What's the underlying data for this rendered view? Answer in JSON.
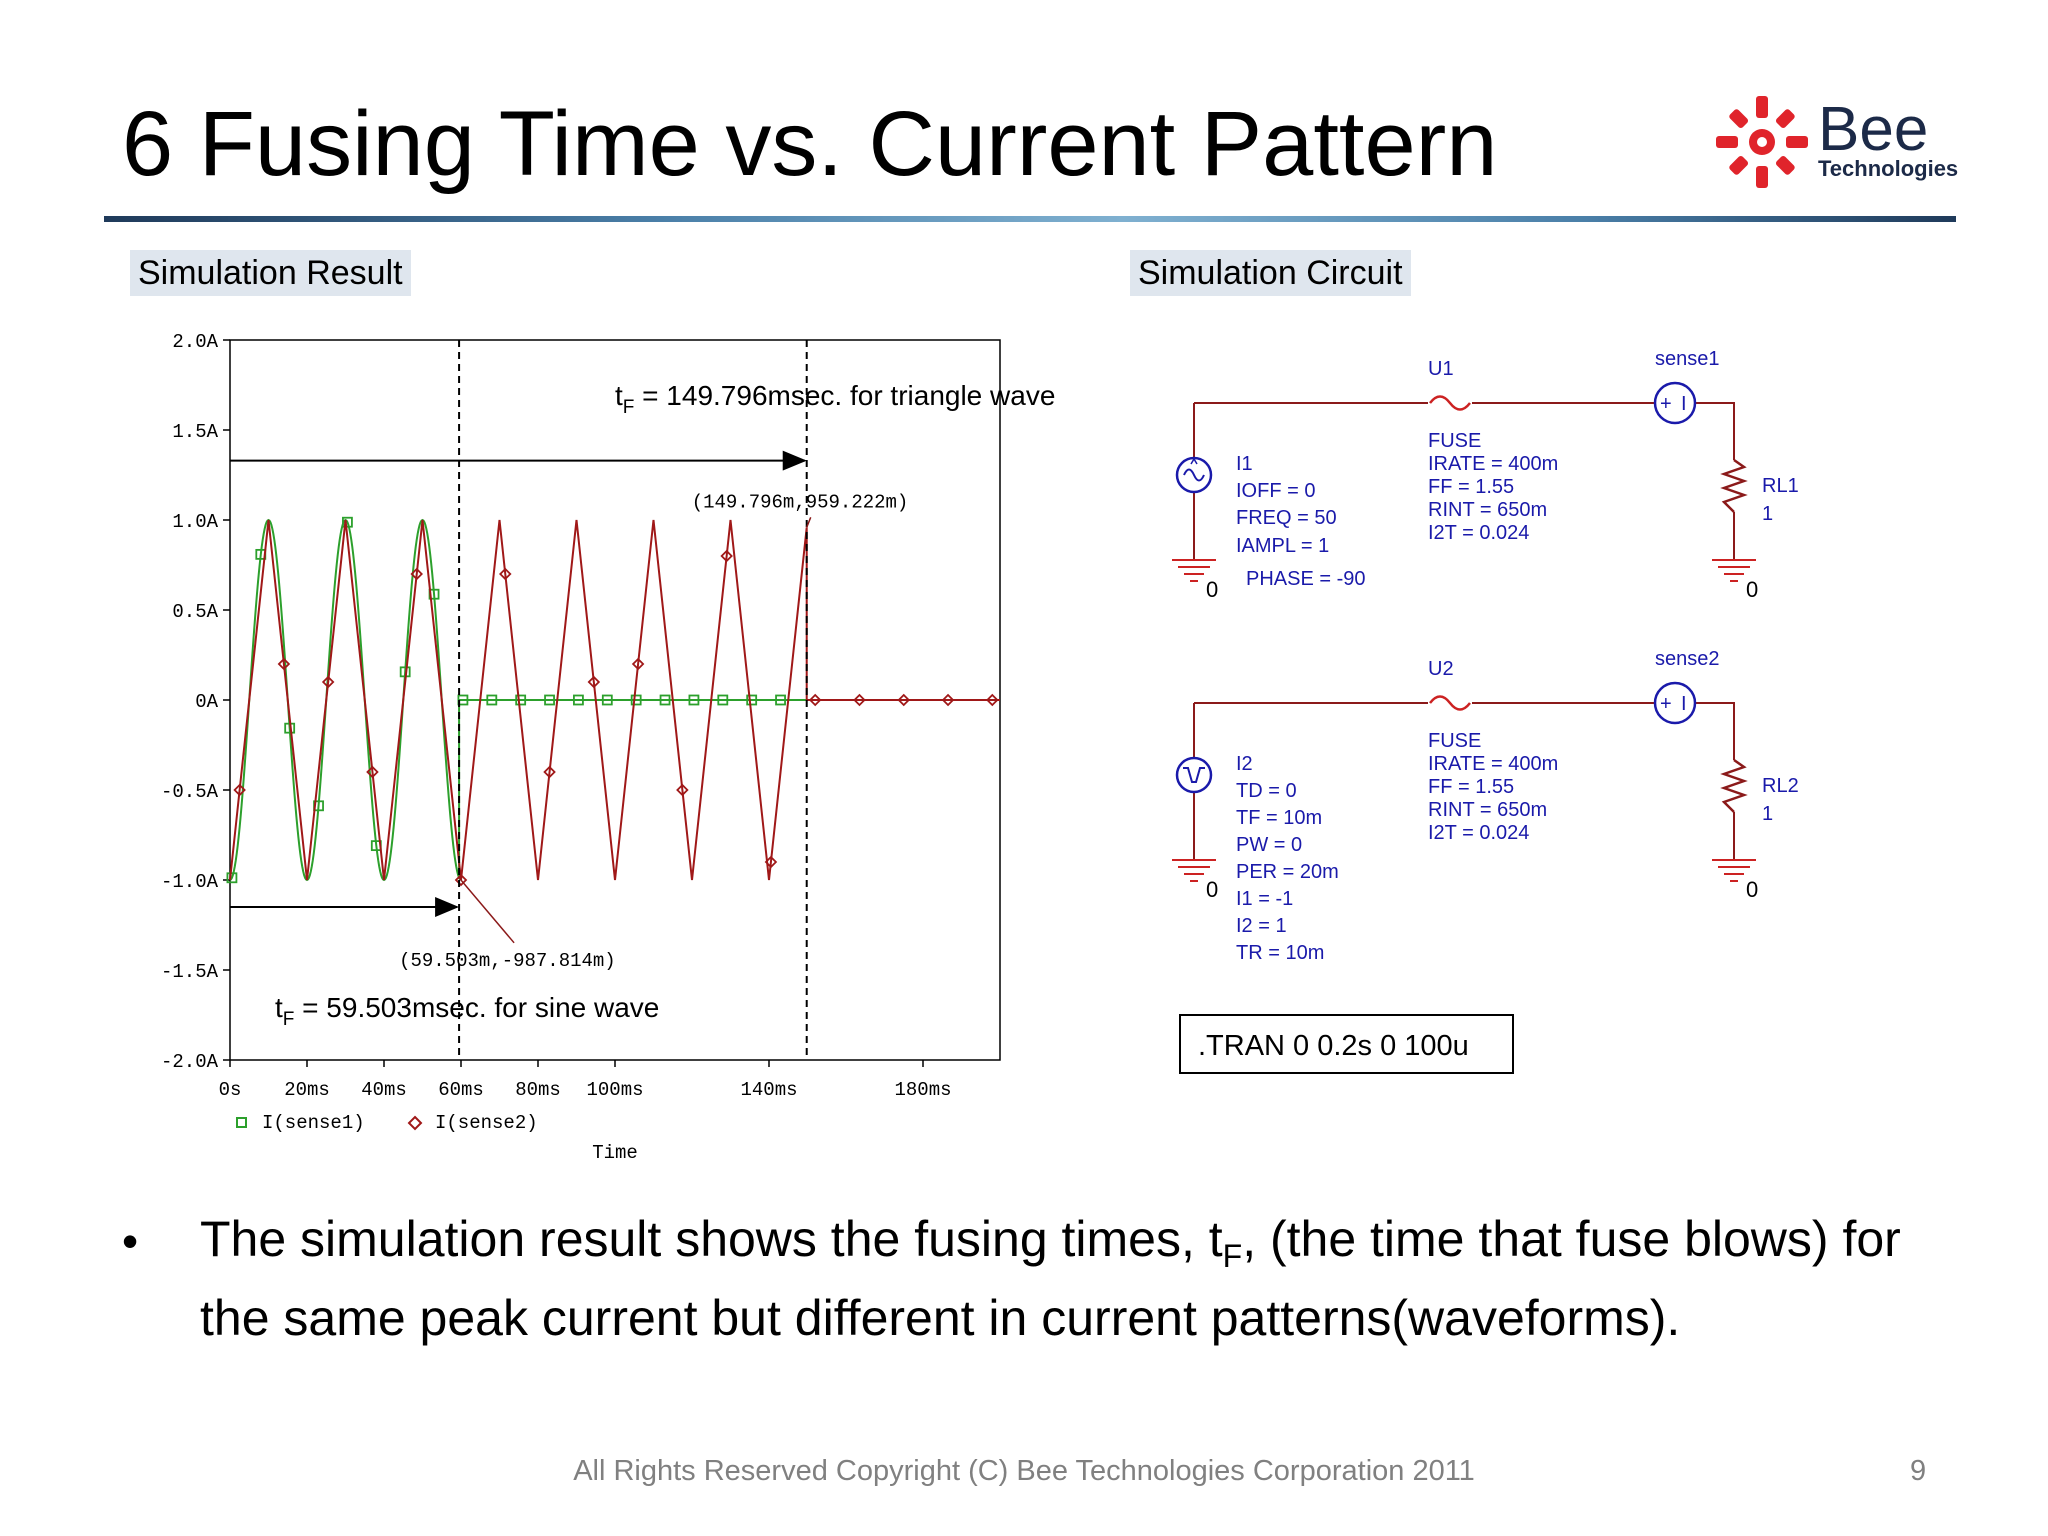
{
  "slide": {
    "title": "6 Fusing Time vs. Current Pattern",
    "logo": {
      "word": "Bee",
      "sub": "Technologies",
      "colors": {
        "star": "#e0242b",
        "word": "#1c2a48"
      }
    },
    "sections": {
      "result_label": "Simulation Result",
      "circuit_label": "Simulation Circuit"
    },
    "bullet": {
      "part1": "The simulation result shows the fusing times, t",
      "sub": "F",
      "part2": ", (the time that fuse blows) for the same peak current but different in current patterns(waveforms)."
    },
    "footer": "All Rights Reserved Copyright (C) Bee Technologies Corporation 2011",
    "page_number": "9"
  },
  "chart_data": {
    "type": "line",
    "xlabel": "Time",
    "x_unit": "ms",
    "xlim": [
      0,
      200
    ],
    "ylim": [
      -2.0,
      2.0
    ],
    "x_ticks": [
      {
        "value": 0,
        "label": "0s"
      },
      {
        "value": 20,
        "label": "20ms"
      },
      {
        "value": 40,
        "label": "40ms"
      },
      {
        "value": 60,
        "label": "60ms"
      },
      {
        "value": 80,
        "label": "80ms"
      },
      {
        "value": 100,
        "label": "100ms"
      },
      {
        "value": 140,
        "label": "140ms"
      },
      {
        "value": 180,
        "label": "180ms"
      }
    ],
    "y_ticks": [
      {
        "value": 2.0,
        "label": "2.0A"
      },
      {
        "value": 1.5,
        "label": "1.5A"
      },
      {
        "value": 1.0,
        "label": "1.0A"
      },
      {
        "value": 0.5,
        "label": "0.5A"
      },
      {
        "value": 0.0,
        "label": "0A"
      },
      {
        "value": -0.5,
        "label": "-0.5A"
      },
      {
        "value": -1.0,
        "label": "-1.0A"
      },
      {
        "value": -1.5,
        "label": "-1.5A"
      },
      {
        "value": -2.0,
        "label": "-2.0A"
      }
    ],
    "series": [
      {
        "name": "I(sense1)",
        "shape": "sine",
        "amplitude": 1.0,
        "frequency_hz": 50,
        "phase_deg": -90,
        "cutoff_ms": 59.503,
        "end_ms": 150,
        "color": "#2ca02c",
        "marker": "square"
      },
      {
        "name": "I(sense2)",
        "shape": "triangle",
        "amplitude": 1.0,
        "period_ms": 20,
        "cutoff_ms": 149.796,
        "end_ms": 200,
        "color": "#a01818",
        "marker": "diamond"
      }
    ],
    "markers": [
      {
        "x": 59.503,
        "y": -0.987814,
        "label": "(59.503m,-987.814m)"
      },
      {
        "x": 149.796,
        "y": 0.959222,
        "label": "(149.796m,959.222m)"
      }
    ],
    "annotations": [
      {
        "prefix": "t",
        "sub": "F",
        "text": " = 149.796msec. for triangle wave"
      },
      {
        "prefix": "t",
        "sub": "F",
        "text": " = 59.503msec. for sine wave"
      }
    ]
  },
  "circuit": {
    "top": {
      "source": {
        "ref": "I1",
        "params": [
          "IOFF = 0",
          "FREQ = 50",
          "IAMPL = 1"
        ],
        "phase": "PHASE = -90"
      },
      "fuse": {
        "ref": "U1",
        "type": "FUSE",
        "params": [
          "IRATE = 400m",
          "FF = 1.55",
          "RINT = 650m",
          "I2T = 0.024"
        ]
      },
      "sense": {
        "ref": "sense1"
      },
      "load": {
        "ref": "RL1",
        "value": "1"
      },
      "ground_left": "0",
      "ground_right": "0"
    },
    "bottom": {
      "source": {
        "ref": "I2",
        "params": [
          "TD = 0",
          "TF = 10m",
          "PW = 0",
          "PER = 20m",
          "I1 = -1",
          "I2 = 1",
          "TR = 10m"
        ]
      },
      "fuse": {
        "ref": "U2",
        "type": "FUSE",
        "params": [
          "IRATE = 400m",
          "FF = 1.55",
          "RINT = 650m",
          "I2T = 0.024"
        ]
      },
      "sense": {
        "ref": "sense2"
      },
      "load": {
        "ref": "RL2",
        "value": "1"
      },
      "ground_left": "0",
      "ground_right": "0"
    },
    "tran": ".TRAN  0 0.2s 0 100u",
    "colors": {
      "wire": "#8b1a1a",
      "part": "#1a1aaa",
      "text": "#1a1aaa",
      "ground": "#cc2222",
      "fuse": "#cc2222"
    }
  }
}
